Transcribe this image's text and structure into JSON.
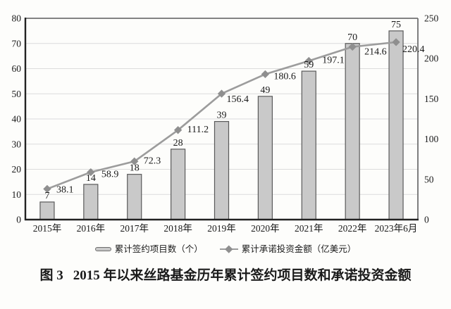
{
  "caption": {
    "prefix": "图 3",
    "text": "2015 年以来丝路基金历年累计签约项目数和承诺投资金额"
  },
  "chart_data": {
    "type": "bar+line",
    "title": "图 3  2015 年以来丝路基金历年累计签约项目数和承诺投资金额",
    "categories": [
      "2015年",
      "2016年",
      "2017年",
      "2018年",
      "2019年",
      "2020年",
      "2021年",
      "2022年",
      "2023年6月"
    ],
    "series": [
      {
        "name": "累计签约项目数（个）",
        "type": "bar",
        "axis": "left",
        "values": [
          7,
          14,
          18,
          28,
          39,
          49,
          59,
          70,
          75
        ],
        "labels": [
          "7",
          "14",
          "18",
          "28",
          "39",
          "49",
          "59",
          "70",
          "75"
        ]
      },
      {
        "name": "累计承诺投资金额（亿美元）",
        "type": "line",
        "axis": "right",
        "values": [
          38.1,
          58.9,
          72.3,
          111.2,
          156.4,
          180.6,
          197.1,
          214.6,
          220.4
        ],
        "labels": [
          "38.1",
          "58.9",
          "72.3",
          "111.2",
          "156.4",
          "180.6",
          "197.1",
          "214.6",
          "220.4"
        ],
        "label_offsets": [
          [
            13,
            5
          ],
          [
            15,
            7
          ],
          [
            13,
            3
          ],
          [
            13,
            3
          ],
          [
            7,
            12
          ],
          [
            12,
            7
          ],
          [
            19,
            3
          ],
          [
            17,
            11
          ],
          [
            9,
            14
          ]
        ]
      }
    ],
    "left_axis": {
      "min": 0,
      "max": 80,
      "step": 10,
      "ticks": [
        "0",
        "10",
        "20",
        "30",
        "40",
        "50",
        "60",
        "70",
        "80"
      ]
    },
    "right_axis": {
      "min": 0,
      "max": 250,
      "step": 50,
      "ticks": [
        "0",
        "50",
        "100",
        "150",
        "200",
        "250"
      ]
    },
    "grid": "horizontal",
    "legend_position": "bottom",
    "colors": {
      "bar_fill": "#c9c9c9",
      "bar_border": "#5a5a5a",
      "line": "#9c9c9c",
      "marker": "#8f8f8f",
      "grid": "#dcdcdc",
      "axis_dark": "#222222",
      "axis_light": "#707070",
      "text": "#1a1a1a"
    }
  }
}
